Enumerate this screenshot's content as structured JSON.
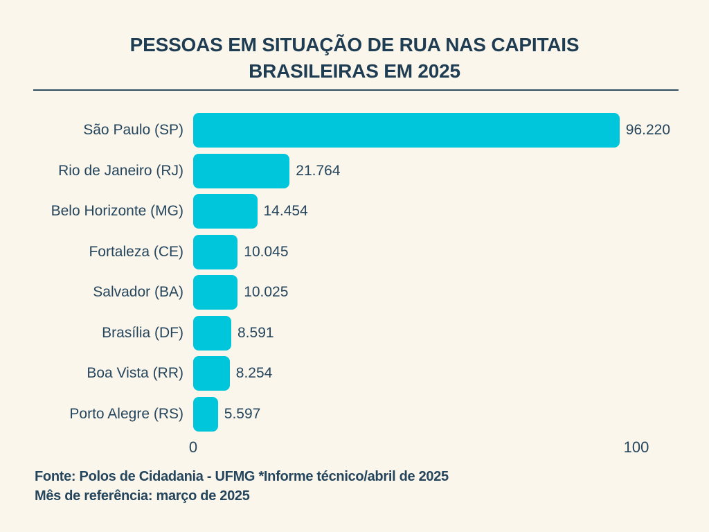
{
  "title": "PESSOAS EM SITUAÇÃO DE RUA NAS CAPITAIS BRASILEIRAS EM 2025",
  "footer": {
    "line1": "Fonte: Polos de Cidadania - UFMG *Informe técnico/abril de 2025",
    "line2": "Mês de referência: março de 2025"
  },
  "colors": {
    "background": "#FBF6EC",
    "bar": "#00C6DC",
    "text": "#24455C",
    "title_text": "#1E3C52"
  },
  "chart_data": {
    "type": "bar",
    "orientation": "horizontal",
    "title": "PESSOAS EM SITUAÇÃO DE RUA NAS CAPITAIS BRASILEIRAS EM 2025",
    "categories": [
      "São Paulo (SP)",
      "Rio de Janeiro (RJ)",
      "Belo Horizonte (MG)",
      "Fortaleza (CE)",
      "Salvador (BA)",
      "Brasília (DF)",
      "Boa Vista (RR)",
      "Porto Alegre (RS)"
    ],
    "values": [
      96220,
      21764,
      14454,
      10045,
      10025,
      8591,
      8254,
      5597
    ],
    "value_labels": [
      "96.220",
      "21.764",
      "14.454",
      "10.045",
      "10.025",
      "8.591",
      "8.254",
      "5.597"
    ],
    "xlabel": "",
    "ylabel": "",
    "xlim": [
      0,
      100000
    ],
    "x_tick_labels": [
      "0",
      "100"
    ],
    "x_tick_values": [
      0,
      100000
    ],
    "grid": false,
    "legend": false,
    "bar_color": "#00C6DC"
  }
}
